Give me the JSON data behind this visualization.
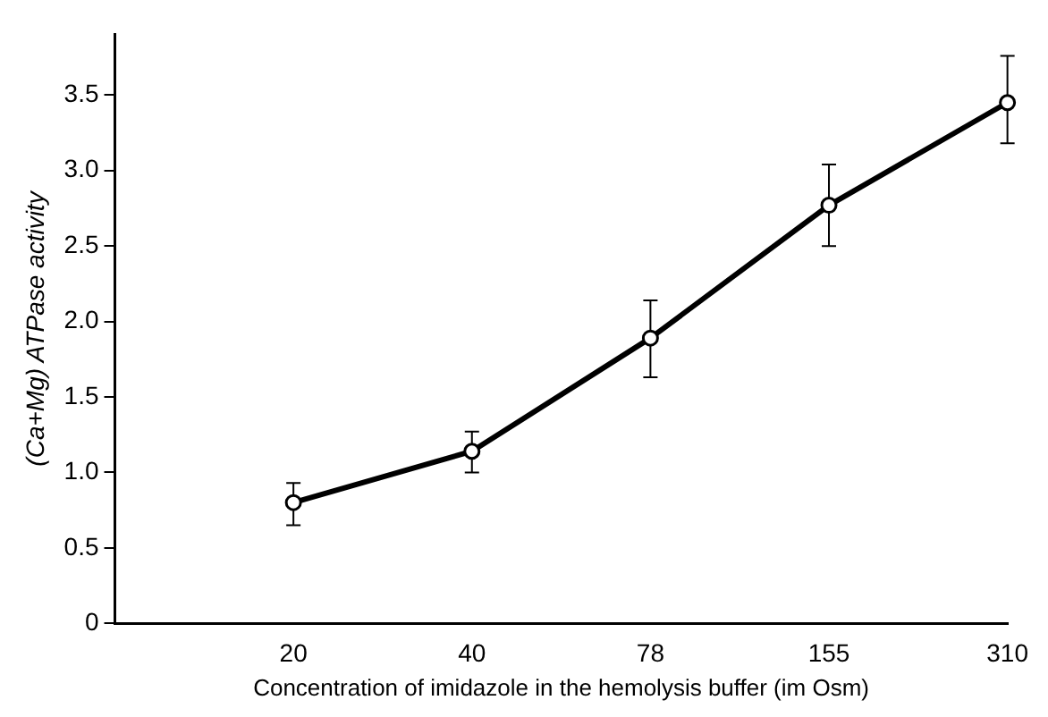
{
  "chart_data": {
    "type": "line",
    "xlabel": "Concentration of imidazole in the hemolysis buffer (im Osm)",
    "ylabel": "(Ca+Mg) ATPase activity",
    "categories": [
      null,
      "20",
      "40",
      "78",
      "155",
      "310"
    ],
    "series": [
      {
        "color": "#000000",
        "values": [
          null,
          0.8,
          1.14,
          1.89,
          2.77,
          3.45
        ],
        "errors": [
          null,
          [
            0.65,
            0.93
          ],
          [
            1.0,
            1.27
          ],
          [
            1.63,
            2.14
          ],
          [
            2.5,
            3.04
          ],
          [
            3.18,
            3.76
          ]
        ]
      }
    ],
    "ylim": [
      0,
      3.9
    ],
    "yticks": [
      {
        "value": 0,
        "label": "0"
      },
      0.5,
      {
        "value": 1,
        "label": "1.0"
      },
      1.5,
      {
        "value": 2,
        "label": "2.0"
      },
      2.5,
      {
        "value": 3,
        "label": "3.0"
      },
      3.5
    ],
    "grid": false,
    "legend": false,
    "marker": "circle",
    "line_style": "solid"
  }
}
